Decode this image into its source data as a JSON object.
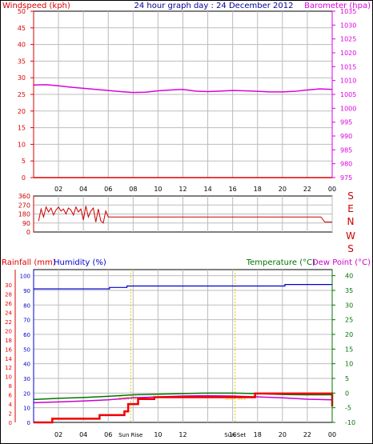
{
  "header": {
    "left_title": "Windspeed (kph)",
    "center_title": "24 hour graph day : 24 December 2012",
    "right_title": "Barometer (hpa)"
  },
  "colors": {
    "wind": "#dd0000",
    "pressure": "#dd00dd",
    "direction": "#cc0000",
    "rain": "#ee0000",
    "humidity": "#0000cc",
    "temperature": "#007700",
    "dewpoint": "#cc00cc",
    "sun": "#ddcc00",
    "grid": "#bbbbbb",
    "axis": "#000000"
  },
  "x_ticks": [
    "02",
    "04",
    "06",
    "08",
    "10",
    "12",
    "14",
    "16",
    "18",
    "20",
    "22",
    "00"
  ],
  "panel1": {
    "wind_ticks": [
      "0",
      "5",
      "10",
      "15",
      "20",
      "25",
      "30",
      "35",
      "40",
      "45",
      "50"
    ],
    "pressure_ticks": [
      "975",
      "980",
      "985",
      "990",
      "995",
      "1000",
      "1005",
      "1010",
      "1015",
      "1020",
      "1025",
      "1030",
      "1035"
    ]
  },
  "panel2": {
    "dir_ticks": [
      "0",
      "90",
      "180",
      "270",
      "360"
    ],
    "compass": [
      "S",
      "E",
      "N",
      "W",
      "S"
    ]
  },
  "panel3": {
    "rain_label": "Rainfall (mm)",
    "humidity_label": "Humidity (%)",
    "temp_label": "Temperature (°C)",
    "dew_label": "Dew Point (°C)",
    "left_ticks": [
      "0",
      "2",
      "4",
      "6",
      "8",
      "10",
      "12",
      "14",
      "16",
      "18",
      "20",
      "22",
      "24",
      "26",
      "28",
      "30"
    ],
    "hum_ticks": [
      "0",
      "10",
      "20",
      "30",
      "40",
      "50",
      "60",
      "70",
      "80",
      "90",
      "100"
    ],
    "temp_ticks": [
      "-10",
      "-5",
      "0",
      "5",
      "10",
      "15",
      "20",
      "25",
      "30",
      "35",
      "40"
    ],
    "sunrise_label": "Sun Rise",
    "sunset_label": "Sun Set",
    "sunrise_tick": "Sun Rise",
    "sunset_tick": "Sun Set"
  },
  "chart_data": [
    {
      "type": "line",
      "title": "24 hour graph day : 24 December 2012",
      "ylabel": "Windspeed (kph)",
      "y2label": "Barometer (hpa)",
      "ylim": [
        0,
        50
      ],
      "y2lim": [
        975,
        1035
      ],
      "series": [
        {
          "name": "Windspeed (kph)",
          "axis": "left",
          "x": [
            0,
            24
          ],
          "values": [
            0,
            0
          ]
        },
        {
          "name": "Barometer (hpa)",
          "axis": "right",
          "x": [
            0,
            1,
            2,
            3,
            4,
            5,
            6,
            7,
            8,
            9,
            10,
            11,
            12,
            13,
            14,
            15,
            16,
            17,
            18,
            19,
            20,
            21,
            22,
            23,
            24
          ],
          "values": [
            1008.4,
            1008.5,
            1008.1,
            1007.6,
            1007.2,
            1006.8,
            1006.4,
            1006.0,
            1005.7,
            1005.8,
            1006.3,
            1006.6,
            1006.8,
            1006.2,
            1006.0,
            1006.2,
            1006.4,
            1006.3,
            1006.1,
            1005.9,
            1005.9,
            1006.1,
            1006.6,
            1007.0,
            1006.8
          ]
        }
      ]
    },
    {
      "type": "line",
      "ylabel": "",
      "ylim": [
        0,
        360
      ],
      "series": [
        {
          "name": "",
          "axis": "left",
          "x": [
            0.4,
            0.6,
            0.8,
            1.0,
            1.2,
            1.4,
            1.6,
            1.8,
            2.0,
            2.2,
            2.4,
            2.6,
            2.8,
            3.0,
            3.2,
            3.4,
            3.6,
            3.8,
            4.0,
            4.2,
            4.4,
            4.6,
            4.8,
            5.0,
            5.2,
            5.4,
            5.6,
            5.8,
            6.0,
            6.2,
            23.1,
            23.4,
            24.0
          ],
          "values": [
            110,
            230,
            150,
            250,
            200,
            240,
            170,
            220,
            250,
            210,
            230,
            180,
            240,
            220,
            170,
            250,
            200,
            230,
            120,
            260,
            150,
            210,
            240,
            100,
            230,
            110,
            90,
            210,
            150,
            150,
            150,
            100,
            100
          ]
        }
      ]
    },
    {
      "type": "line",
      "ylabel": "Rainfall (mm)",
      "ylim": [
        0,
        30
      ],
      "series": [
        {
          "name": "Rainfall (mm)",
          "axis": "rain",
          "step": true,
          "x": [
            0,
            1.5,
            5.3,
            7.3,
            7.6,
            8.4,
            9.7,
            17.8,
            23.7,
            24
          ],
          "values": [
            0,
            0.8,
            1.6,
            2.4,
            4.0,
            5.1,
            5.5,
            6.3,
            6.3,
            3.5
          ]
        },
        {
          "name": "Humidity (%)",
          "axis": "humidity",
          "step": true,
          "x": [
            0,
            6.1,
            7.5,
            20.2,
            24
          ],
          "values": [
            91,
            92,
            93,
            94,
            94
          ]
        },
        {
          "name": "Temperature (°C)",
          "axis": "temp",
          "x": [
            0,
            2,
            4,
            6,
            8,
            10,
            12,
            14,
            16,
            18,
            20,
            22,
            24
          ],
          "values": [
            -2.2,
            -1.8,
            -1.5,
            -1.1,
            -0.6,
            -0.4,
            -0.2,
            0.0,
            0.0,
            -0.2,
            -0.5,
            -0.6,
            -0.6
          ]
        },
        {
          "name": "Dew Point (°C)",
          "axis": "temp",
          "x": [
            0,
            2,
            4,
            6,
            8,
            10,
            12,
            14,
            16,
            18,
            20,
            22,
            24
          ],
          "values": [
            -3.3,
            -3.0,
            -2.7,
            -2.3,
            -1.6,
            -1.3,
            -1.0,
            -0.9,
            -1.0,
            -1.3,
            -1.6,
            -2.1,
            -2.3
          ]
        }
      ],
      "annotations": [
        {
          "label": "Sun Rise",
          "x": 7.8
        },
        {
          "label": "Sun Set",
          "x": 16.2
        }
      ]
    }
  ]
}
